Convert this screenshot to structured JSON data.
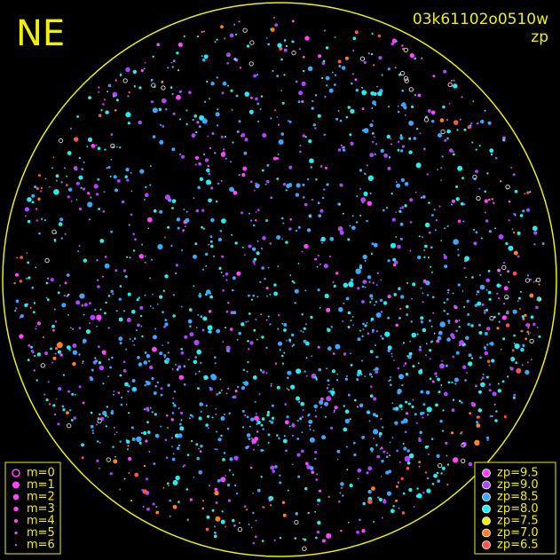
{
  "corner_label": "NE",
  "image_id": "03k61102o0510w",
  "mode": "zp",
  "magnitude_legend": [
    "m=0",
    "m=1",
    "m=2",
    "m=3",
    "m=4",
    "m=5",
    "m=6"
  ],
  "zp_legend": [
    {
      "label": "zp=9.5",
      "color": "#ff44ff"
    },
    {
      "label": "zp=9.0",
      "color": "#b044ff"
    },
    {
      "label": "zp=8.5",
      "color": "#3aa8ff"
    },
    {
      "label": "zp=8.0",
      "color": "#22f0f0"
    },
    {
      "label": "zp=7.5",
      "color": "#f0f000"
    },
    {
      "label": "zp=7.0",
      "color": "#ff8020"
    },
    {
      "label": "zp=6.5",
      "color": "#ff5050"
    }
  ]
}
